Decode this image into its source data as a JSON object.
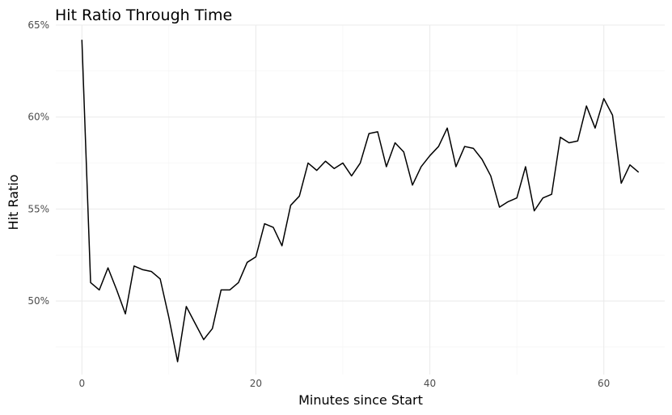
{
  "chart_data": {
    "type": "line",
    "title": "Hit Ratio Through Time",
    "xlabel": "Minutes since Start",
    "ylabel": "Hit Ratio",
    "xlim": [
      -3,
      67
    ],
    "ylim": [
      0.46,
      0.65
    ],
    "x_ticks": [
      {
        "value": 0,
        "label": "0"
      },
      {
        "value": 20,
        "label": "20"
      },
      {
        "value": 40,
        "label": "40"
      },
      {
        "value": 60,
        "label": "60"
      }
    ],
    "x_minor_ticks": [
      10,
      30,
      50
    ],
    "y_ticks": [
      {
        "value": 0.5,
        "label": "50%"
      },
      {
        "value": 0.55,
        "label": "55%"
      },
      {
        "value": 0.6,
        "label": "60%"
      },
      {
        "value": 0.65,
        "label": "65%"
      }
    ],
    "y_minor_ticks": [
      0.475,
      0.525,
      0.575,
      0.625
    ],
    "grid": true,
    "legend": "none",
    "series": [
      {
        "color": "#000000",
        "x": [
          0,
          1,
          2,
          3,
          4,
          5,
          6,
          7,
          8,
          9,
          10,
          11,
          12,
          13,
          14,
          15,
          16,
          17,
          18,
          19,
          20,
          21,
          22,
          23,
          24,
          25,
          26,
          27,
          28,
          29,
          30,
          31,
          32,
          33,
          34,
          35,
          36,
          37,
          38,
          39,
          40,
          41,
          42,
          43,
          44,
          45,
          46,
          47,
          48,
          49,
          50,
          51,
          52,
          53,
          54,
          55,
          56,
          57,
          58,
          59,
          60,
          61,
          62,
          63,
          64
        ],
        "values": [
          0.642,
          0.51,
          0.506,
          0.518,
          0.506,
          0.493,
          0.519,
          0.517,
          0.516,
          0.512,
          0.491,
          0.467,
          0.497,
          0.488,
          0.479,
          0.485,
          0.506,
          0.506,
          0.51,
          0.521,
          0.524,
          0.542,
          0.54,
          0.53,
          0.552,
          0.557,
          0.575,
          0.571,
          0.576,
          0.572,
          0.575,
          0.568,
          0.575,
          0.591,
          0.592,
          0.573,
          0.586,
          0.581,
          0.563,
          0.573,
          0.579,
          0.584,
          0.594,
          0.573,
          0.584,
          0.583,
          0.577,
          0.568,
          0.551,
          0.554,
          0.556,
          0.573,
          0.549,
          0.556,
          0.558,
          0.589,
          0.586,
          0.587,
          0.606,
          0.594,
          0.61,
          0.601,
          0.564,
          0.574,
          0.57
        ]
      }
    ]
  }
}
